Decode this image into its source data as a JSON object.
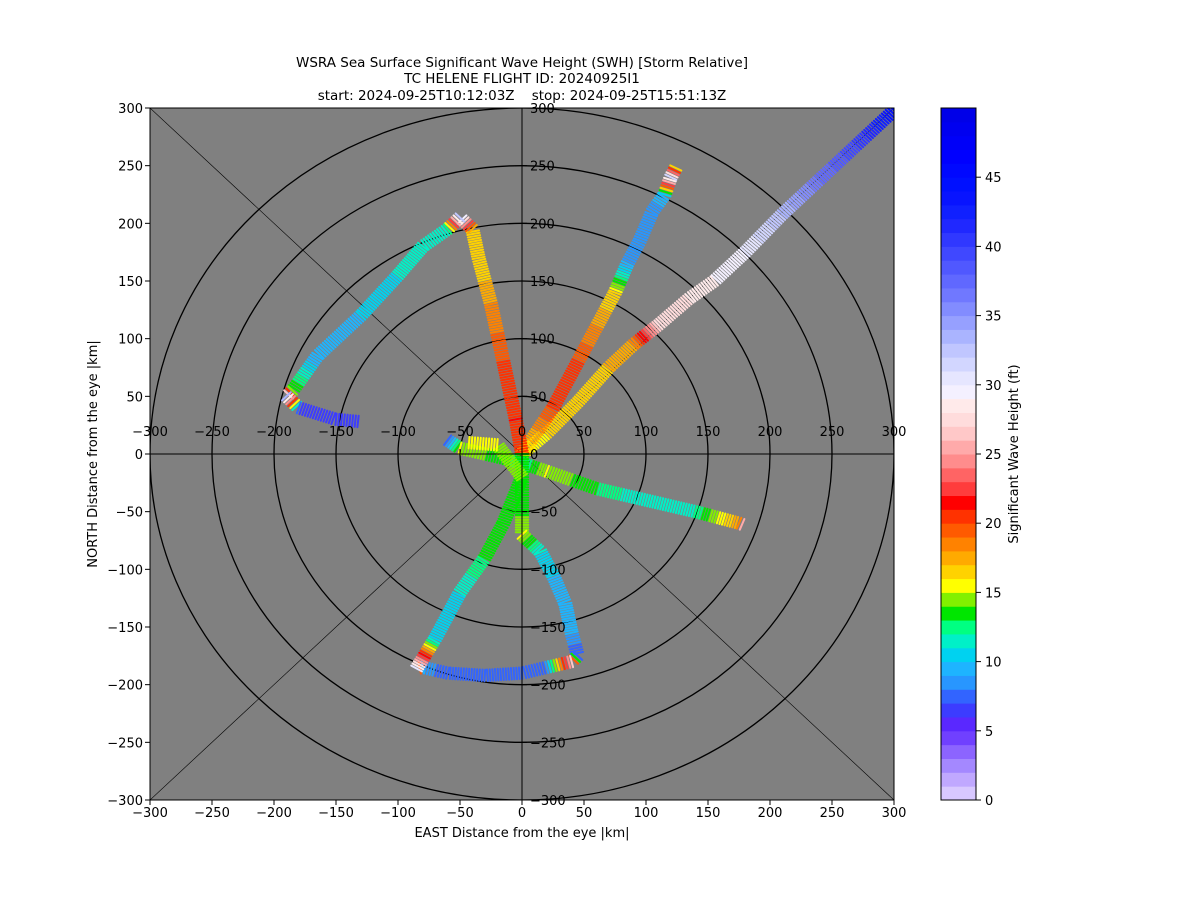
{
  "chart_data": {
    "type": "scatter",
    "title_lines": [
      "WSRA Sea Surface Significant Wave Height (SWH) [Storm Relative]",
      "TC HELENE FLIGHT ID: 20240925I1",
      "start: 2024-09-25T10:12:03Z    stop: 2024-09-25T15:51:13Z"
    ],
    "xlabel": "EAST Distance from the eye |km|",
    "ylabel": "NORTH Distance from the eye |km|",
    "xlim": [
      -300,
      300
    ],
    "ylim": [
      -300,
      300
    ],
    "xticks": [
      "−300",
      "−250",
      "−200",
      "−150",
      "−100",
      "−50",
      "0",
      "50",
      "100",
      "150",
      "200",
      "250",
      "300"
    ],
    "yticks": [
      "−300",
      "−250",
      "−200",
      "−150",
      "−100",
      "−50",
      "0",
      "50",
      "100",
      "150",
      "200",
      "250",
      "300"
    ],
    "inner_xticks": [
      "−300",
      "−250",
      "−200",
      "−150",
      "−100",
      "−50",
      "0",
      "50",
      "100",
      "150",
      "200",
      "250",
      "300"
    ],
    "inner_yticks": [
      "−300",
      "−250",
      "−200",
      "−150",
      "−100",
      "−50",
      "0",
      "50",
      "100",
      "150",
      "200",
      "250",
      "300"
    ],
    "range_rings_km": [
      50,
      100,
      150,
      200,
      250,
      300
    ],
    "background_color": "#808080",
    "colorbar": {
      "label": "Significant Wave Height (ft)",
      "min": 0,
      "max": 50,
      "ticks": [
        "0",
        "5",
        "10",
        "15",
        "20",
        "25",
        "30",
        "35",
        "40",
        "45"
      ],
      "colors": [
        "#d8c8ff",
        "#c0a8ff",
        "#a488ff",
        "#8c64ff",
        "#7040ff",
        "#5a28ff",
        "#3c3cff",
        "#3264ff",
        "#2896ff",
        "#1eb4ff",
        "#00d2f0",
        "#00f0c8",
        "#00ff82",
        "#00e600",
        "#82f000",
        "#ffff00",
        "#ffd200",
        "#ffaa00",
        "#ff8200",
        "#ff5a00",
        "#ff3200",
        "#ff0000",
        "#ff3c3c",
        "#ff6464",
        "#ff8c8c",
        "#ffaaaa",
        "#ffc8c8",
        "#ffdcdc",
        "#ffeaea",
        "#f4f0ff",
        "#e6e6ff",
        "#d2d6ff",
        "#c0c6ff",
        "#aab4ff",
        "#96a0ff",
        "#828cff",
        "#7078ff",
        "#6068ff",
        "#5058ff",
        "#4048ff",
        "#3038ff",
        "#2028ff",
        "#1020ff",
        "#0814ff",
        "#0010ff",
        "#0008ff",
        "#0000ff",
        "#0000f8",
        "#0000f0",
        "#0000e8"
      ]
    },
    "series": [
      {
        "points": [
          [
            300,
            298,
            44
          ],
          [
            270,
            268,
            40
          ],
          [
            240,
            238,
            37
          ],
          [
            210,
            208,
            33
          ],
          [
            180,
            175,
            30
          ],
          [
            155,
            150,
            29
          ],
          [
            135,
            135,
            28
          ],
          [
            110,
            112,
            27
          ],
          [
            90,
            95,
            18
          ],
          [
            70,
            75,
            17
          ],
          [
            45,
            45,
            16
          ],
          [
            20,
            18,
            16
          ],
          [
            0,
            0,
            15
          ]
        ]
      },
      {
        "points": [
          [
            0,
            0,
            16
          ],
          [
            25,
            40,
            20
          ],
          [
            45,
            80,
            20
          ],
          [
            60,
            110,
            18
          ],
          [
            75,
            140,
            16
          ],
          [
            85,
            165,
            9
          ],
          [
            95,
            185,
            8
          ],
          [
            105,
            210,
            8
          ],
          [
            115,
            225,
            10
          ],
          [
            120,
            240,
            31
          ],
          [
            125,
            250,
            13
          ]
        ]
      },
      {
        "points": [
          [
            0,
            0,
            20
          ],
          [
            -5,
            30,
            21
          ],
          [
            -15,
            80,
            20
          ],
          [
            -25,
            130,
            18
          ],
          [
            -35,
            170,
            16
          ],
          [
            -40,
            195,
            17
          ],
          [
            -50,
            205,
            32
          ],
          [
            -60,
            195,
            12
          ],
          [
            -80,
            180,
            11
          ],
          [
            -100,
            155,
            11
          ],
          [
            -130,
            120,
            10
          ],
          [
            -165,
            85,
            9
          ],
          [
            -185,
            55,
            14
          ],
          [
            -190,
            50,
            33
          ],
          [
            -180,
            40,
            7
          ],
          [
            -150,
            30,
            6
          ],
          [
            -130,
            28,
            6
          ]
        ]
      },
      {
        "points": [
          [
            -60,
            12,
            7
          ],
          [
            -50,
            5,
            15
          ],
          [
            -30,
            0,
            14
          ],
          [
            -10,
            -5,
            13
          ],
          [
            0,
            -8,
            12
          ],
          [
            20,
            -15,
            15
          ],
          [
            60,
            -30,
            13
          ],
          [
            100,
            -40,
            11
          ],
          [
            140,
            -50,
            12
          ],
          [
            175,
            -60,
            18
          ],
          [
            180,
            -62,
            32
          ]
        ]
      },
      {
        "points": [
          [
            0,
            0,
            13
          ],
          [
            0,
            -40,
            13
          ],
          [
            0,
            -70,
            15
          ],
          [
            15,
            -85,
            11
          ],
          [
            25,
            -105,
            10
          ],
          [
            35,
            -130,
            9
          ],
          [
            40,
            -155,
            9
          ],
          [
            45,
            -175,
            7
          ],
          [
            40,
            -180,
            26
          ],
          [
            20,
            -185,
            8
          ],
          [
            0,
            -190,
            7
          ],
          [
            -30,
            -192,
            7
          ],
          [
            -60,
            -190,
            7
          ],
          [
            -80,
            -185,
            9
          ],
          [
            -85,
            -186,
            30
          ],
          [
            -70,
            -160,
            10
          ],
          [
            -50,
            -120,
            11
          ],
          [
            -30,
            -90,
            13
          ],
          [
            -15,
            -60,
            13
          ],
          [
            0,
            -20,
            14
          ],
          [
            -20,
            8,
            15
          ],
          [
            -45,
            10,
            16
          ]
        ]
      }
    ]
  }
}
